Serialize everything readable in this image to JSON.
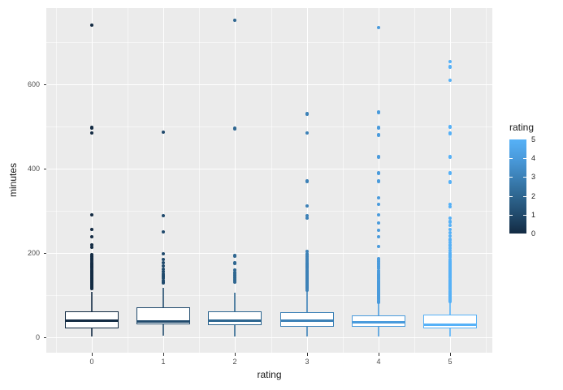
{
  "chart_data": {
    "type": "boxplot",
    "title": "",
    "xlabel": "rating",
    "ylabel": "minutes",
    "x_tick_labels": [
      "0",
      "1",
      "2",
      "3",
      "4",
      "5"
    ],
    "y_tick_values": [
      0,
      200,
      400,
      600
    ],
    "y_tick_labels": [
      "0",
      "200",
      "400",
      "600"
    ],
    "y_minor_values": [
      100,
      300,
      500,
      700
    ],
    "ylim": [
      -37,
      781
    ],
    "grid": "on",
    "panel_bg": "#EBEBEB",
    "grid_color": "#FFFFFF",
    "tick_label_color": "#4D4D4D",
    "axis_title_color": "#1A1A1A",
    "tick_mark_color": "#333333",
    "legend": {
      "title": "rating",
      "position": "right",
      "type": "colorbar",
      "tick_labels_top_to_bottom": [
        "5",
        "4",
        "3",
        "2",
        "1",
        "0"
      ],
      "low_color": "#132B43",
      "high_color": "#56B1F7",
      "gradient_top_to_bottom": [
        "#56B1F7",
        "#4A9BDC",
        "#3C81B7",
        "#2E6690",
        "#214A6C",
        "#132B43"
      ]
    },
    "series": [
      {
        "rating": "0",
        "color": "#132B43",
        "box": {
          "whisker_low": 2,
          "q1": 22,
          "median": 40,
          "q3": 61,
          "whisker_high": 107
        },
        "outliers": [
          115,
          118,
          121,
          124,
          127,
          130,
          133,
          136,
          139,
          142,
          145,
          148,
          151,
          154,
          157,
          160,
          164,
          168,
          172,
          176,
          181,
          186,
          191,
          196,
          213,
          219,
          238,
          256,
          290,
          485,
          497,
          740
        ]
      },
      {
        "rating": "1",
        "color": "#204A6C",
        "box": {
          "whisker_low": 3,
          "q1": 30,
          "median": 38,
          "q3": 71,
          "whisker_high": 118
        },
        "outliers": [
          130,
          135,
          140,
          145,
          150,
          156,
          162,
          169,
          177,
          185,
          198,
          250,
          288,
          487
        ]
      },
      {
        "rating": "2",
        "color": "#2E6690",
        "box": {
          "whisker_low": 2,
          "q1": 29,
          "median": 40,
          "q3": 61,
          "whisker_high": 105
        },
        "outliers": [
          131,
          136,
          141,
          147,
          153,
          160,
          176,
          193,
          495,
          752
        ]
      },
      {
        "rating": "3",
        "color": "#3C81B7",
        "box": {
          "whisker_low": 2,
          "q1": 25,
          "median": 40,
          "q3": 60,
          "whisker_high": 110
        },
        "outliers": [
          112,
          115,
          118,
          121,
          124,
          127,
          130,
          133,
          136,
          139,
          142,
          145,
          148,
          151,
          154,
          157,
          160,
          164,
          168,
          172,
          176,
          181,
          186,
          191,
          197,
          204,
          283,
          288,
          312,
          370,
          485,
          530
        ]
      },
      {
        "rating": "4",
        "color": "#4A9BDC",
        "box": {
          "whisker_low": 2,
          "q1": 25,
          "median": 35,
          "q3": 52,
          "whisker_high": 88
        },
        "outliers": [
          84,
          87,
          90,
          93,
          96,
          99,
          102,
          105,
          108,
          111,
          114,
          117,
          120,
          123,
          126,
          129,
          132,
          135,
          138,
          141,
          144,
          147,
          150,
          154,
          158,
          163,
          168,
          174,
          180,
          186,
          215,
          238,
          254,
          271,
          290,
          315,
          331,
          370,
          389,
          428,
          480,
          497,
          534,
          735
        ]
      },
      {
        "rating": "5",
        "color": "#56B1F7",
        "box": {
          "whisker_low": 2,
          "q1": 22,
          "median": 29,
          "q3": 54,
          "whisker_high": 85
        },
        "outliers": [
          86,
          89,
          92,
          95,
          98,
          101,
          104,
          107,
          110,
          113,
          116,
          119,
          122,
          125,
          128,
          131,
          134,
          137,
          140,
          143,
          146,
          149,
          152,
          155,
          158,
          161,
          164,
          168,
          172,
          176,
          180,
          185,
          190,
          195,
          200,
          206,
          212,
          218,
          225,
          232,
          240,
          248,
          256,
          265,
          274,
          283,
          310,
          315,
          368,
          389,
          428,
          484,
          499,
          610,
          641,
          654
        ]
      }
    ]
  }
}
